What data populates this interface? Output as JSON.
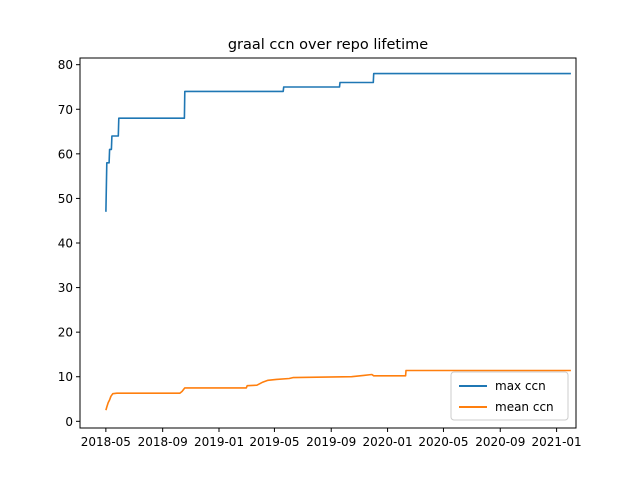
{
  "chart_data": {
    "type": "line",
    "title": "graal ccn over repo lifetime",
    "xlabel": "",
    "ylabel": "",
    "x_axis": "date",
    "xlim": [
      "2018-03-06",
      "2021-02-12"
    ],
    "ylim": [
      -1.5,
      81.5
    ],
    "x_ticks": [
      {
        "date": "2018-05-01",
        "label": "2018-05"
      },
      {
        "date": "2018-09-01",
        "label": "2018-09"
      },
      {
        "date": "2019-01-01",
        "label": "2019-01"
      },
      {
        "date": "2019-05-01",
        "label": "2019-05"
      },
      {
        "date": "2019-09-01",
        "label": "2019-09"
      },
      {
        "date": "2020-01-01",
        "label": "2020-01"
      },
      {
        "date": "2020-05-01",
        "label": "2020-05"
      },
      {
        "date": "2020-09-01",
        "label": "2020-09"
      },
      {
        "date": "2021-01-01",
        "label": "2021-01"
      }
    ],
    "y_ticks": [
      0,
      10,
      20,
      30,
      40,
      50,
      60,
      70,
      80
    ],
    "grid": false,
    "legend_position": "bottom-right",
    "series": [
      {
        "name": "max ccn",
        "color": "#1f77b4",
        "step": true,
        "points": [
          [
            "2018-05-01",
            47
          ],
          [
            "2018-05-03",
            58
          ],
          [
            "2018-05-08",
            58
          ],
          [
            "2018-05-09",
            61
          ],
          [
            "2018-05-13",
            61
          ],
          [
            "2018-05-14",
            64
          ],
          [
            "2018-05-28",
            64
          ],
          [
            "2018-05-29",
            68
          ],
          [
            "2018-10-18",
            68
          ],
          [
            "2018-10-19",
            74
          ],
          [
            "2019-05-20",
            74
          ],
          [
            "2019-05-21",
            75
          ],
          [
            "2019-09-19",
            75
          ],
          [
            "2019-09-20",
            76
          ],
          [
            "2019-12-01",
            76
          ],
          [
            "2019-12-02",
            78
          ],
          [
            "2021-02-01",
            78
          ]
        ]
      },
      {
        "name": "mean ccn",
        "color": "#ff7f0e",
        "step": true,
        "points": [
          [
            "2018-05-01",
            2.5
          ],
          [
            "2018-05-03",
            3.2
          ],
          [
            "2018-05-06",
            4.2
          ],
          [
            "2018-05-09",
            4.8
          ],
          [
            "2018-05-12",
            5.6
          ],
          [
            "2018-05-16",
            6.2
          ],
          [
            "2018-05-25",
            6.3
          ],
          [
            "2018-10-08",
            6.3
          ],
          [
            "2018-10-13",
            6.7
          ],
          [
            "2018-10-19",
            7.5
          ],
          [
            "2019-03-01",
            7.5
          ],
          [
            "2019-03-03",
            8.0
          ],
          [
            "2019-03-24",
            8.1
          ],
          [
            "2019-04-06",
            8.8
          ],
          [
            "2019-04-17",
            9.2
          ],
          [
            "2019-05-05",
            9.4
          ],
          [
            "2019-06-02",
            9.6
          ],
          [
            "2019-06-10",
            9.8
          ],
          [
            "2019-08-01",
            9.9
          ],
          [
            "2019-10-15",
            10.0
          ],
          [
            "2019-11-10",
            10.3
          ],
          [
            "2019-11-28",
            10.5
          ],
          [
            "2019-12-02",
            10.2
          ],
          [
            "2020-02-09",
            10.2
          ],
          [
            "2020-02-10",
            11.4
          ],
          [
            "2021-02-01",
            11.4
          ]
        ]
      }
    ]
  }
}
